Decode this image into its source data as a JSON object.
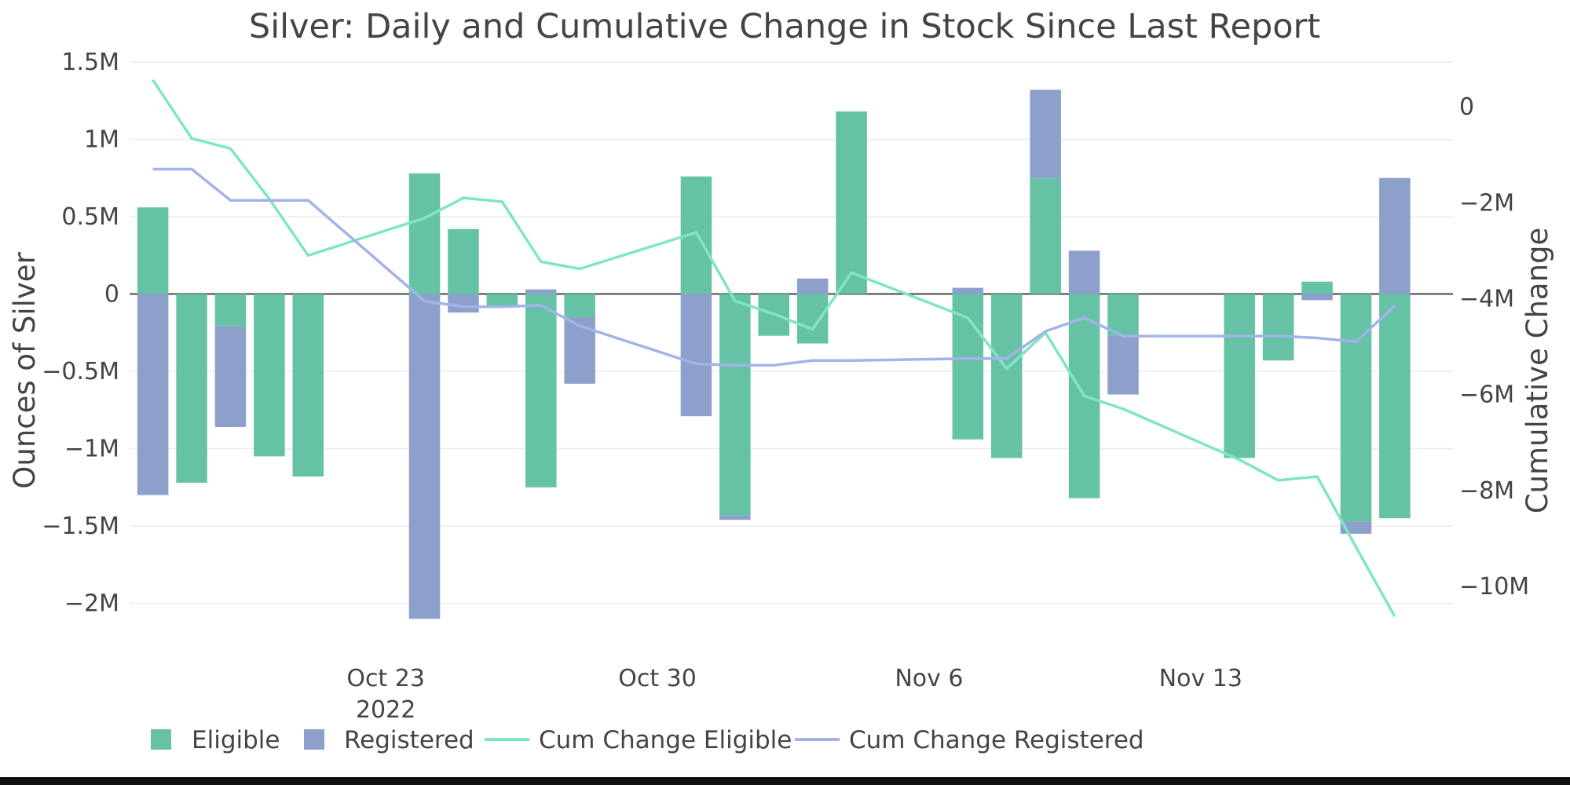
{
  "chart_data": {
    "type": "bar",
    "barmode": "relative",
    "title": "Silver: Daily and Cumulative Change in Stock Since Last Report",
    "ylabel": "Ounces of Silver",
    "y2label": "Cumulative Change",
    "ylim": [
      -2.2,
      1.52
    ],
    "y2lim": [
      -11.0,
      1.0
    ],
    "yticks": [
      {
        "v": 1.5,
        "t": "1.5M"
      },
      {
        "v": 1,
        "t": "1M"
      },
      {
        "v": 0.5,
        "t": "0.5M"
      },
      {
        "v": 0,
        "t": "0"
      },
      {
        "v": -0.5,
        "t": "−0.5M"
      },
      {
        "v": -1,
        "t": "−1M"
      },
      {
        "v": -1.5,
        "t": "−1.5M"
      },
      {
        "v": -2,
        "t": "−2M"
      }
    ],
    "y2ticks": [
      {
        "v": 0,
        "t": "0"
      },
      {
        "v": -2,
        "t": "−2M"
      },
      {
        "v": -4,
        "t": "−4M"
      },
      {
        "v": -6,
        "t": "−6M"
      },
      {
        "v": -8,
        "t": "−8M"
      },
      {
        "v": -10,
        "t": "−10M"
      }
    ],
    "xlim": [
      -5.6,
      28.5
    ],
    "xticks": [
      {
        "v": 1,
        "t": "Oct 23",
        "sub": "2022"
      },
      {
        "v": 8,
        "t": "Oct 30",
        "sub": ""
      },
      {
        "v": 15,
        "t": "Nov 6",
        "sub": ""
      },
      {
        "v": 22,
        "t": "Nov 13",
        "sub": ""
      }
    ],
    "x": [
      -5,
      -4,
      -3,
      -2,
      -1,
      2,
      3,
      4,
      5,
      6,
      9,
      10,
      11,
      12,
      13,
      16,
      17,
      18,
      19,
      20,
      23,
      24,
      25,
      26,
      27
    ],
    "series": [
      {
        "name": "Eligible",
        "color": "#66c2a5",
        "values": [
          0.56,
          -1.22,
          -0.21,
          -1.05,
          -1.18,
          0.78,
          0.42,
          -0.08,
          -1.25,
          -0.15,
          0.76,
          -1.43,
          -0.27,
          -0.32,
          1.18,
          -0.94,
          -1.06,
          0.75,
          -1.32,
          -0.27,
          -1.06,
          -0.43,
          0.08,
          -1.47,
          -1.45
        ]
      },
      {
        "name": "Registered",
        "color": "#8da0cb",
        "values": [
          -1.3,
          0,
          -0.65,
          0,
          0,
          -2.1,
          -0.12,
          0,
          0.03,
          -0.43,
          -0.79,
          -0.03,
          0,
          0.1,
          0,
          0.04,
          0,
          0.57,
          0.28,
          -0.38,
          0,
          0,
          -0.04,
          -0.08,
          0.75
        ]
      },
      {
        "name": "Cum Change Eligible",
        "color": "#7fe6c4",
        "type": "line",
        "values": [
          0.56,
          -0.66,
          -0.87,
          -1.92,
          -3.1,
          -2.32,
          -1.9,
          -1.98,
          -3.23,
          -3.38,
          -2.62,
          -4.05,
          -4.32,
          -4.64,
          -3.46,
          -4.4,
          -5.46,
          -4.71,
          -6.03,
          -6.3,
          -7.36,
          -7.79,
          -7.71,
          -9.18,
          -10.63
        ]
      },
      {
        "name": "Cum Change Registered",
        "color": "#a3b3ea",
        "type": "line",
        "values": [
          -1.3,
          -1.3,
          -1.95,
          -1.95,
          -1.95,
          -4.05,
          -4.17,
          -4.17,
          -4.14,
          -4.57,
          -5.36,
          -5.39,
          -5.39,
          -5.29,
          -5.29,
          -5.25,
          -5.25,
          -4.68,
          -4.4,
          -4.78,
          -4.78,
          -4.78,
          -4.82,
          -4.9,
          -4.15
        ]
      }
    ],
    "legend": [
      "Eligible",
      "Registered",
      "Cum Change Eligible",
      "Cum Change Registered"
    ],
    "legend_position": "bottom-left",
    "grid": true
  }
}
